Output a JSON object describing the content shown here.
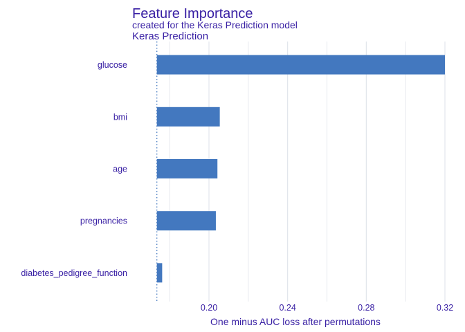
{
  "chart_data": {
    "type": "bar",
    "orientation": "horizontal",
    "title": "Feature Importance",
    "subtitle": "created for the Keras Prediction model",
    "facet_label": "Keras Prediction",
    "xlabel": "One minus AUC loss after permutations",
    "ylabel": "",
    "xlim": [
      0.173,
      0.32
    ],
    "baseline": 0.1735,
    "x_ticks": [
      0.2,
      0.24,
      0.28,
      0.32
    ],
    "x_tick_labels": [
      "0.20",
      "0.24",
      "0.28",
      "0.32"
    ],
    "grid": true,
    "categories": [
      "glucose",
      "bmi",
      "age",
      "pregnancies",
      "diabetes_pedigree_function"
    ],
    "values": [
      0.32,
      0.2055,
      0.2043,
      0.2035,
      0.1762
    ],
    "bar_color": "#4378bf",
    "baseline_color": "#4378bf",
    "text_color": "#371ea3",
    "grid_color": "#dfe3ea"
  }
}
